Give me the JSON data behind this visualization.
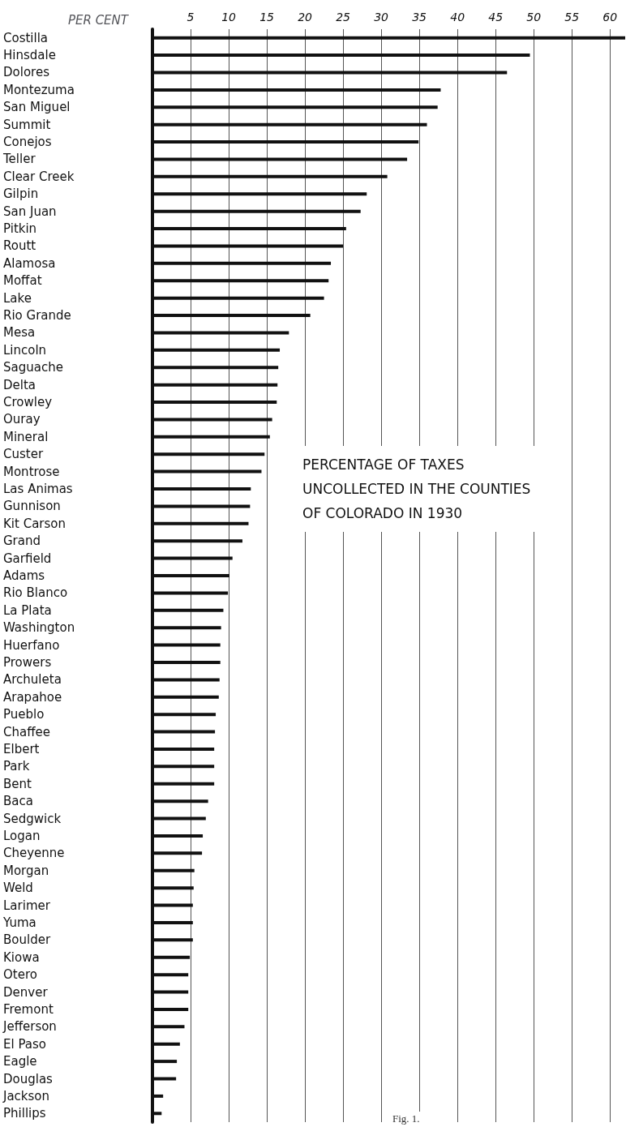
{
  "chart_data": {
    "type": "bar",
    "orientation": "horizontal",
    "title": "PERCENTAGE OF TAXES UNCOLLECTED IN THE COUNTIES OF COLORADO IN 1930",
    "xlabel": "PER CENT",
    "annotations": [
      "Fig. 1."
    ],
    "categories": [
      "Costilla",
      "Hinsdale",
      "Dolores",
      "Montezuma",
      "San Miguel",
      "Summit",
      "Conejos",
      "Teller",
      "Clear Creek",
      "Gilpin",
      "San Juan",
      "Pitkin",
      "Routt",
      "Alamosa",
      "Moffat",
      "Lake",
      "Rio Grande",
      "Mesa",
      "Lincoln",
      "Saguache",
      "Delta",
      "Crowley",
      "Ouray",
      "Mineral",
      "Custer",
      "Montrose",
      "Las Animas",
      "Gunnison",
      "Kit Carson",
      "Grand",
      "Garfield",
      "Adams",
      "Rio Blanco",
      "La Plata",
      "Washington",
      "Huerfano",
      "Prowers",
      "Archuleta",
      "Arapahoe",
      "Pueblo",
      "Chaffee",
      "Elbert",
      "Park",
      "Bent",
      "Baca",
      "Sedgwick",
      "Logan",
      "Cheyenne",
      "Morgan",
      "Weld",
      "Larimer",
      "Yuma",
      "Boulder",
      "Kiowa",
      "Otero",
      "Denver",
      "Fremont",
      "Jefferson",
      "El Paso",
      "Eagle",
      "Douglas",
      "Jackson",
      "Phillips"
    ],
    "values": [
      62,
      49.5,
      46.5,
      37.8,
      37.4,
      36,
      34.9,
      33.4,
      30.8,
      28.1,
      27.3,
      25.4,
      25,
      23.4,
      23.1,
      22.5,
      20.7,
      17.9,
      16.7,
      16.5,
      16.4,
      16.3,
      15.7,
      15.4,
      14.7,
      14.3,
      12.9,
      12.8,
      12.6,
      11.8,
      10.5,
      10.1,
      9.9,
      9.3,
      9,
      8.9,
      8.9,
      8.8,
      8.7,
      8.3,
      8.2,
      8.1,
      8.1,
      8.1,
      7.3,
      7,
      6.6,
      6.5,
      5.5,
      5.4,
      5.3,
      5.3,
      5.3,
      4.9,
      4.7,
      4.7,
      4.7,
      4.2,
      3.6,
      3.2,
      3.1,
      1.4,
      1.2
    ],
    "color": "#111111",
    "xlim": [
      0,
      62
    ],
    "xticks": [
      5,
      10,
      15,
      20,
      25,
      30,
      35,
      40,
      45,
      50,
      55,
      60
    ],
    "grid": "x"
  }
}
